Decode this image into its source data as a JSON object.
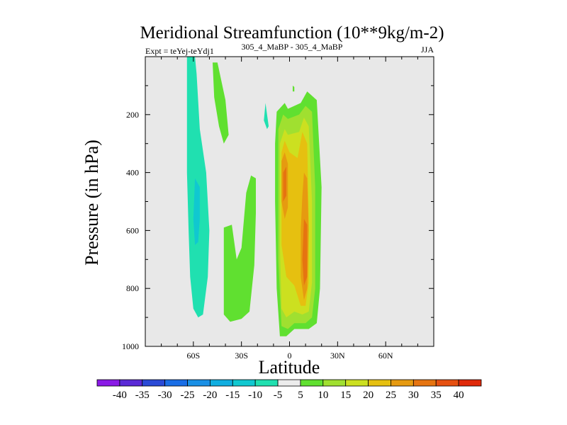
{
  "chart_data": {
    "type": "contour",
    "title": "Meridional Streamfunction (10**9kg/m-2)",
    "subtitle_left": "Expt = teYej-teYdj1",
    "subtitle_center": "305_4_MaBP - 305_4_MaBP",
    "subtitle_right": "JJA",
    "xlabel": "Latitude",
    "ylabel": "Pressure (in hPa)",
    "xlim": [
      -90,
      90
    ],
    "ylim": [
      1000,
      0
    ],
    "x_ticks": [
      {
        "value": -60,
        "label": "60S"
      },
      {
        "value": -30,
        "label": "30S"
      },
      {
        "value": 0,
        "label": "0"
      },
      {
        "value": 30,
        "label": "30N"
      },
      {
        "value": 60,
        "label": "60N"
      }
    ],
    "y_ticks": [
      {
        "value": 200,
        "label": "200"
      },
      {
        "value": 400,
        "label": "400"
      },
      {
        "value": 600,
        "label": "600"
      },
      {
        "value": 800,
        "label": "800"
      },
      {
        "value": 1000,
        "label": "1000"
      }
    ],
    "colorbar": {
      "labels": [
        "-40",
        "-35",
        "-30",
        "-25",
        "-20",
        "-15",
        "-10",
        "-5",
        "5",
        "10",
        "15",
        "20",
        "25",
        "30",
        "35",
        "40"
      ],
      "colors": [
        "#8a1ae6",
        "#5a2ad6",
        "#2a4ad6",
        "#1a6ee6",
        "#1a90e6",
        "#10aee0",
        "#10c8d0",
        "#20e0b0",
        "#ececec",
        "#60e030",
        "#a0e030",
        "#cce020",
        "#e6c010",
        "#e69a10",
        "#e67410",
        "#e65010",
        "#e02a0a"
      ]
    },
    "regions": [
      {
        "name": "westerly-negative-band",
        "level": -5,
        "color": "#20e0b0",
        "polygon": [
          [
            -64,
            0
          ],
          [
            -59,
            0
          ],
          [
            -58,
            60
          ],
          [
            -56,
            250
          ],
          [
            -52,
            400
          ],
          [
            -50,
            600
          ],
          [
            -51,
            760
          ],
          [
            -54,
            890
          ],
          [
            -57,
            900
          ],
          [
            -60,
            870
          ],
          [
            -62,
            760
          ],
          [
            -63,
            600
          ],
          [
            -64,
            400
          ],
          [
            -64,
            200
          ]
        ]
      },
      {
        "name": "negative-core",
        "level": -10,
        "color": "#10c8d0",
        "polygon": [
          [
            -59,
            420
          ],
          [
            -56,
            450
          ],
          [
            -56,
            560
          ],
          [
            -57,
            640
          ],
          [
            -59,
            650
          ],
          [
            -60,
            560
          ]
        ]
      },
      {
        "name": "upper-positive-tongue",
        "level": 5,
        "color": "#60e030",
        "polygon": [
          [
            -48,
            20
          ],
          [
            -45,
            20
          ],
          [
            -40,
            150
          ],
          [
            -38,
            270
          ],
          [
            -41,
            300
          ],
          [
            -44,
            240
          ],
          [
            -47,
            140
          ]
        ]
      },
      {
        "name": "small-negative-patch",
        "level": -5,
        "color": "#20e0b0",
        "polygon": [
          [
            -15,
            160
          ],
          [
            -14,
            200
          ],
          [
            -13,
            240
          ],
          [
            -14,
            250
          ],
          [
            -16,
            220
          ]
        ]
      },
      {
        "name": "lower-positive-cell",
        "level": 5,
        "color": "#60e030",
        "polygon": [
          [
            -41,
            590
          ],
          [
            -36,
            580
          ],
          [
            -33,
            700
          ],
          [
            -30,
            660
          ],
          [
            -27,
            470
          ],
          [
            -24,
            410
          ],
          [
            -21,
            420
          ],
          [
            -21,
            540
          ],
          [
            -22,
            720
          ],
          [
            -25,
            880
          ],
          [
            -30,
            905
          ],
          [
            -37,
            915
          ],
          [
            -41,
            890
          ]
        ]
      },
      {
        "name": "main-cell-level-5",
        "level": 5,
        "color": "#60e030",
        "polygon": [
          [
            -8,
            190
          ],
          [
            -3,
            160
          ],
          [
            -1,
            180
          ],
          [
            7,
            160
          ],
          [
            11,
            120
          ],
          [
            17,
            150
          ],
          [
            20,
            450
          ],
          [
            19,
            800
          ],
          [
            17,
            920
          ],
          [
            12,
            940
          ],
          [
            3,
            940
          ],
          [
            -2,
            965
          ],
          [
            -6,
            965
          ],
          [
            -8,
            800
          ],
          [
            -9,
            500
          ],
          [
            -9,
            300
          ]
        ]
      },
      {
        "name": "main-cell-level-10",
        "level": 10,
        "color": "#a0e030",
        "polygon": [
          [
            -7,
            250
          ],
          [
            -4,
            200
          ],
          [
            -1,
            215
          ],
          [
            6,
            200
          ],
          [
            10,
            170
          ],
          [
            14,
            190
          ],
          [
            16,
            450
          ],
          [
            16,
            800
          ],
          [
            14,
            900
          ],
          [
            10,
            920
          ],
          [
            3,
            920
          ],
          [
            -1,
            940
          ],
          [
            -5,
            930
          ],
          [
            -7,
            700
          ],
          [
            -7,
            400
          ]
        ]
      },
      {
        "name": "main-cell-level-15",
        "level": 15,
        "color": "#cce020",
        "polygon": [
          [
            -6,
            300
          ],
          [
            -3,
            250
          ],
          [
            -1,
            270
          ],
          [
            6,
            260
          ],
          [
            9,
            210
          ],
          [
            12,
            240
          ],
          [
            14,
            500
          ],
          [
            14,
            780
          ],
          [
            12,
            880
          ],
          [
            8,
            890
          ],
          [
            3,
            880
          ],
          [
            -2,
            900
          ],
          [
            -5,
            870
          ],
          [
            -6,
            650
          ],
          [
            -6,
            450
          ]
        ]
      },
      {
        "name": "main-cell-level-20",
        "level": 20,
        "color": "#e6c010",
        "polygon": [
          [
            -5,
            330
          ],
          [
            -3,
            290
          ],
          [
            0,
            330
          ],
          [
            5,
            350
          ],
          [
            8,
            260
          ],
          [
            11,
            300
          ],
          [
            12,
            560
          ],
          [
            12,
            780
          ],
          [
            10,
            860
          ],
          [
            7,
            860
          ],
          [
            3,
            790
          ],
          [
            -2,
            760
          ],
          [
            -5,
            650
          ],
          [
            -5,
            450
          ]
        ]
      },
      {
        "name": "main-cell-level-25",
        "level": 25,
        "color": "#e69a10",
        "polygon": [
          [
            -5,
            360
          ],
          [
            -3,
            330
          ],
          [
            -1,
            370
          ],
          [
            -1,
            520
          ],
          [
            -3,
            560
          ],
          [
            -5,
            500
          ]
        ]
      },
      {
        "name": "main-cell-level-25-east",
        "level": 25,
        "color": "#e69a10",
        "polygon": [
          [
            9,
            400
          ],
          [
            11,
            420
          ],
          [
            12,
            600
          ],
          [
            11,
            800
          ],
          [
            9,
            840
          ],
          [
            7,
            760
          ],
          [
            7,
            600
          ],
          [
            8,
            480
          ]
        ]
      },
      {
        "name": "main-cell-level-30",
        "level": 30,
        "color": "#e67410",
        "polygon": [
          [
            -4,
            400
          ],
          [
            -2,
            380
          ],
          [
            -2,
            480
          ],
          [
            -4,
            500
          ]
        ]
      },
      {
        "name": "main-cell-level-30-east",
        "level": 30,
        "color": "#e67410",
        "polygon": [
          [
            9,
            560
          ],
          [
            11,
            580
          ],
          [
            11,
            760
          ],
          [
            9,
            790
          ],
          [
            8,
            700
          ]
        ]
      },
      {
        "name": "tiny-positive-dot",
        "level": 5,
        "color": "#60e030",
        "polygon": [
          [
            2,
            100
          ],
          [
            3,
            105
          ],
          [
            3,
            120
          ],
          [
            2,
            120
          ]
        ]
      }
    ]
  }
}
